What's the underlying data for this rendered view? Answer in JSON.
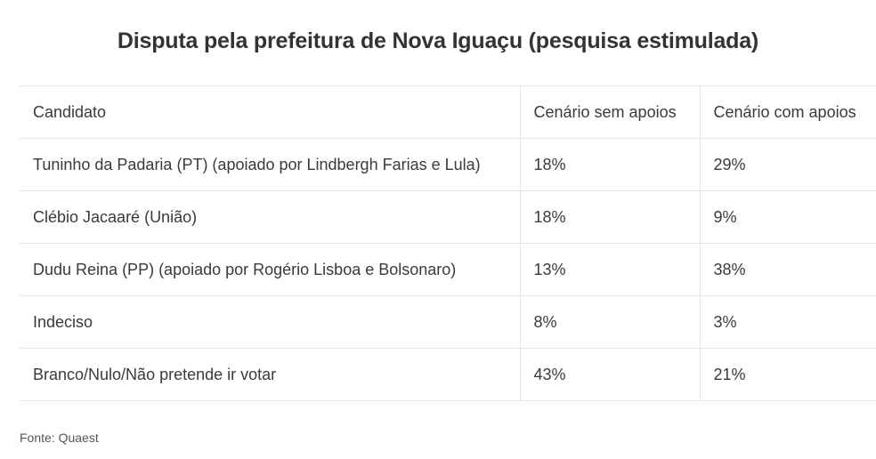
{
  "title": "Disputa pela prefeitura de Nova Iguaçu (pesquisa estimulada)",
  "table": {
    "headers": [
      "Candidato",
      "Cenário sem apoios",
      "Cenário com apoios"
    ],
    "rows": [
      [
        "Tuninho da Padaria (PT) (apoiado por Lindbergh Farias e Lula)",
        "18%",
        "29%"
      ],
      [
        "Clébio Jacaaré (União)",
        "18%",
        "9%"
      ],
      [
        "Dudu Reina (PP) (apoiado por Rogério Lisboa e Bolsonaro)",
        "13%",
        "38%"
      ],
      [
        "Indeciso",
        "8%",
        "3%"
      ],
      [
        "Branco/Nulo/Não pretende ir votar",
        "43%",
        "21%"
      ]
    ]
  },
  "source": "Fonte: Quaest"
}
